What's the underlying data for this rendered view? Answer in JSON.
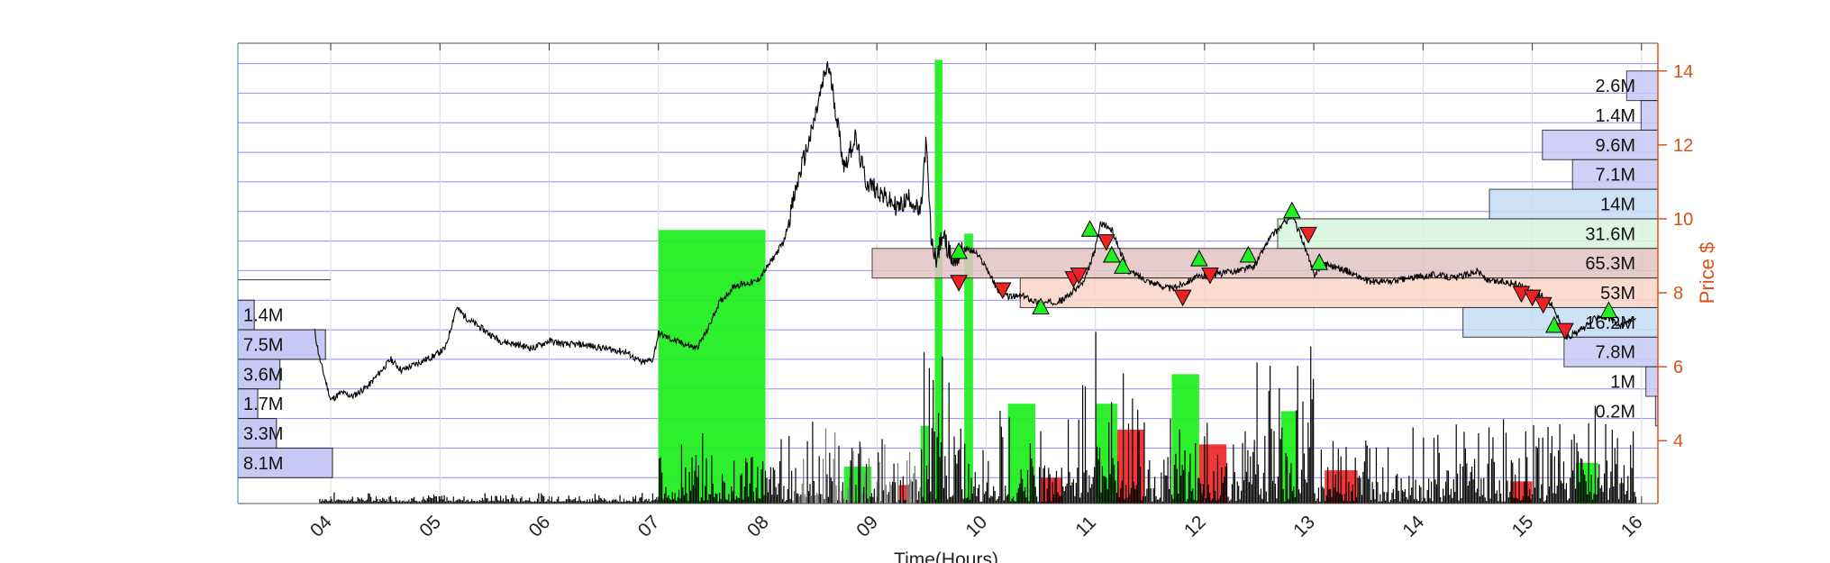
{
  "chart_data": {
    "type": "line",
    "xlabel": "Time(Hours)",
    "ylabel": "Price $",
    "x_ticks": [
      "04",
      "05",
      "06",
      "07",
      "08",
      "09",
      "10",
      "11",
      "12",
      "13",
      "14",
      "15",
      "16"
    ],
    "xlim": [
      3.15,
      16.15
    ],
    "ylim": [
      2.3,
      14.75
    ],
    "y_ticks": [
      4,
      6,
      8,
      10,
      12,
      14
    ],
    "grid": true,
    "colors": {
      "price": "#000000",
      "buy": "#22ee22",
      "sell": "#ee2222",
      "right_axis": "#d95319",
      "grid": "#7070ff",
      "vp_left": "#c8c8f5",
      "vp_right_blue": "#c8c8f5",
      "vp_light_blue": "#c6ddf6",
      "vp_green": "#d6f5dc",
      "vp_pink": "#e3c4c4",
      "vp_orange": "#fbd5c6"
    },
    "price_series": {
      "name": "",
      "x": [
        3.85,
        3.9,
        4.0,
        4.1,
        4.2,
        4.35,
        4.55,
        4.65,
        4.8,
        4.95,
        5.05,
        5.15,
        5.25,
        5.4,
        5.55,
        5.7,
        5.85,
        6.0,
        6.15,
        6.3,
        6.5,
        6.7,
        6.85,
        6.95,
        7.0,
        7.15,
        7.35,
        7.45,
        7.55,
        7.7,
        7.9,
        8.0,
        8.15,
        8.3,
        8.4,
        8.5,
        8.55,
        8.6,
        8.7,
        8.8,
        8.9,
        9.0,
        9.1,
        9.2,
        9.3,
        9.4,
        9.45,
        9.5,
        9.55,
        9.6,
        9.7,
        9.8,
        9.9,
        10.0,
        10.1,
        10.2,
        10.35,
        10.5,
        10.7,
        10.9,
        11.0,
        11.05,
        11.15,
        11.3,
        11.5,
        11.7,
        11.9,
        12.1,
        12.3,
        12.45,
        12.6,
        12.7,
        12.8,
        12.9,
        13.0,
        13.1,
        13.3,
        13.5,
        13.7,
        13.9,
        14.1,
        14.3,
        14.5,
        14.6,
        14.75,
        14.9,
        15.0,
        15.1,
        15.2,
        15.3,
        15.4,
        15.5,
        15.6,
        15.7,
        15.8,
        15.95
      ],
      "y": [
        7.0,
        6.2,
        5.1,
        5.3,
        5.2,
        5.5,
        6.2,
        5.9,
        6.1,
        6.3,
        6.5,
        7.6,
        7.3,
        7.0,
        6.7,
        6.6,
        6.5,
        6.7,
        6.6,
        6.6,
        6.5,
        6.4,
        6.1,
        6.2,
        6.9,
        6.7,
        6.5,
        7.0,
        7.7,
        8.2,
        8.3,
        8.7,
        9.4,
        11.3,
        12.3,
        13.6,
        14.2,
        13.4,
        11.4,
        12.2,
        11.0,
        10.8,
        10.5,
        10.3,
        10.6,
        10.1,
        12.1,
        9.3,
        8.9,
        9.6,
        8.8,
        9.2,
        9.1,
        8.7,
        8.1,
        7.9,
        7.9,
        7.7,
        7.8,
        8.3,
        9.2,
        9.9,
        9.7,
        8.6,
        8.3,
        8.1,
        8.4,
        8.5,
        8.6,
        8.7,
        9.5,
        9.8,
        10.1,
        9.4,
        8.5,
        8.8,
        8.6,
        8.3,
        8.3,
        8.4,
        8.5,
        8.4,
        8.6,
        8.3,
        8.3,
        8.2,
        8.0,
        7.9,
        7.6,
        6.8,
        6.9,
        7.1,
        7.4,
        7.3,
        7.1,
        7.3
      ]
    },
    "buy_markers": {
      "x": [
        9.75,
        10.5,
        10.95,
        11.15,
        11.25,
        11.95,
        12.4,
        12.8,
        13.05,
        15.2,
        15.7
      ],
      "y": [
        9.1,
        7.6,
        9.7,
        9.0,
        8.7,
        8.9,
        9.0,
        10.2,
        8.8,
        7.1,
        7.5
      ]
    },
    "sell_markers": {
      "x": [
        9.75,
        10.15,
        10.8,
        10.85,
        11.1,
        11.8,
        12.05,
        12.95,
        14.9,
        15.0,
        15.1,
        15.3
      ],
      "y": [
        8.3,
        8.1,
        8.4,
        8.5,
        9.4,
        7.9,
        8.5,
        9.6,
        8.0,
        7.9,
        7.7,
        7.0
      ]
    },
    "volume_profile_left": {
      "bins": [
        {
          "label": "1.4M",
          "lo": 7.0,
          "hi": 7.8,
          "value": 1.4
        },
        {
          "label": "7.5M",
          "lo": 6.2,
          "hi": 7.0,
          "value": 7.5
        },
        {
          "label": "3.6M",
          "lo": 5.4,
          "hi": 6.2,
          "value": 3.6
        },
        {
          "label": "1.7M",
          "lo": 4.6,
          "hi": 5.4,
          "value": 1.7
        },
        {
          "label": "3.3M",
          "lo": 3.8,
          "hi": 4.6,
          "value": 3.3
        },
        {
          "label": "8.1M",
          "lo": 3.0,
          "hi": 3.8,
          "value": 8.1
        }
      ],
      "max": 8.1
    },
    "volume_profile_right": {
      "bins": [
        {
          "label": "2.6M",
          "lo": 13.2,
          "hi": 14.0,
          "value": 2.6,
          "color": "vp_right_blue"
        },
        {
          "label": "1.4M",
          "lo": 12.4,
          "hi": 13.2,
          "value": 1.4,
          "color": "vp_right_blue"
        },
        {
          "label": "9.6M",
          "lo": 11.6,
          "hi": 12.4,
          "value": 9.6,
          "color": "vp_right_blue"
        },
        {
          "label": "7.1M",
          "lo": 10.8,
          "hi": 11.6,
          "value": 7.1,
          "color": "vp_right_blue"
        },
        {
          "label": "14M",
          "lo": 10.0,
          "hi": 10.8,
          "value": 14.0,
          "color": "vp_light_blue"
        },
        {
          "label": "31.6M",
          "lo": 9.2,
          "hi": 10.0,
          "value": 31.6,
          "color": "vp_green"
        },
        {
          "label": "65.3M",
          "lo": 8.4,
          "hi": 9.2,
          "value": 65.3,
          "color": "vp_pink"
        },
        {
          "label": "53M",
          "lo": 7.6,
          "hi": 8.4,
          "value": 53.0,
          "color": "vp_orange"
        },
        {
          "label": "16.2M",
          "lo": 6.8,
          "hi": 7.6,
          "value": 16.2,
          "color": "vp_light_blue"
        },
        {
          "label": "7.8M",
          "lo": 6.0,
          "hi": 6.8,
          "value": 7.8,
          "color": "vp_right_blue"
        },
        {
          "label": "1M",
          "lo": 5.2,
          "hi": 6.0,
          "value": 1.0,
          "color": "vp_right_blue"
        },
        {
          "label": "0.2M",
          "lo": 4.4,
          "hi": 5.2,
          "value": 0.2,
          "color": "vp_right_blue"
        }
      ],
      "max": 65.3
    },
    "big_buy_blocks": [
      {
        "x0": 7.0,
        "x1": 7.98,
        "top": 9.7
      },
      {
        "x0": 9.53,
        "x1": 9.6,
        "top": 14.3
      },
      {
        "x0": 9.8,
        "x1": 9.88,
        "top": 9.6
      },
      {
        "x0": 11.7,
        "x1": 11.95,
        "top": 5.8
      },
      {
        "x0": 10.2,
        "x1": 10.45,
        "top": 5.0
      },
      {
        "x0": 9.4,
        "x1": 9.48,
        "top": 4.4
      },
      {
        "x0": 8.7,
        "x1": 8.95,
        "top": 3.3
      },
      {
        "x0": 11.0,
        "x1": 11.2,
        "top": 5.0
      },
      {
        "x0": 12.7,
        "x1": 12.85,
        "top": 4.8
      },
      {
        "x0": 15.4,
        "x1": 15.6,
        "top": 3.4
      }
    ],
    "big_sell_blocks": [
      {
        "x0": 11.2,
        "x1": 11.45,
        "top": 4.3
      },
      {
        "x0": 11.95,
        "x1": 12.2,
        "top": 3.9
      },
      {
        "x0": 13.1,
        "x1": 13.4,
        "top": 3.2
      },
      {
        "x0": 14.8,
        "x1": 15.0,
        "top": 2.9
      },
      {
        "x0": 10.5,
        "x1": 10.7,
        "top": 3.0
      },
      {
        "x0": 9.2,
        "x1": 9.3,
        "top": 2.8
      }
    ]
  }
}
